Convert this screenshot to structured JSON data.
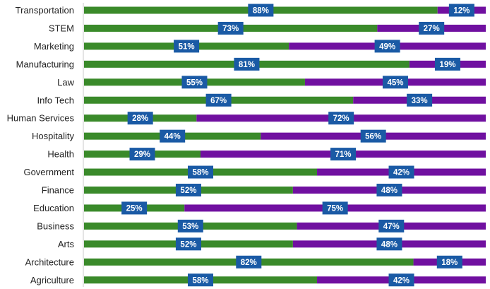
{
  "chart_data": {
    "type": "bar",
    "orientation": "horizontal",
    "stacked": "100%",
    "title": "",
    "xlabel": "",
    "ylabel": "",
    "xlim": [
      0,
      100
    ],
    "grid": false,
    "legend": "none",
    "categories": [
      "Transportation",
      "STEM",
      "Marketing",
      "Manufacturing",
      "Law",
      "Info Tech",
      "Human Services",
      "Hospitality",
      "Health",
      "Government",
      "Finance",
      "Education",
      "Business",
      "Arts",
      "Architecture",
      "Agriculture"
    ],
    "series": [
      {
        "color": "#3a8a2a",
        "values": [
          88,
          73,
          51,
          81,
          55,
          67,
          28,
          44,
          29,
          58,
          52,
          25,
          53,
          52,
          82,
          58
        ]
      },
      {
        "color": "#7010a0",
        "values": [
          12,
          27,
          49,
          19,
          45,
          33,
          72,
          56,
          71,
          42,
          48,
          75,
          47,
          48,
          18,
          42
        ]
      }
    ],
    "label_box_color": "#1a5aa5",
    "value_suffix": "%"
  }
}
